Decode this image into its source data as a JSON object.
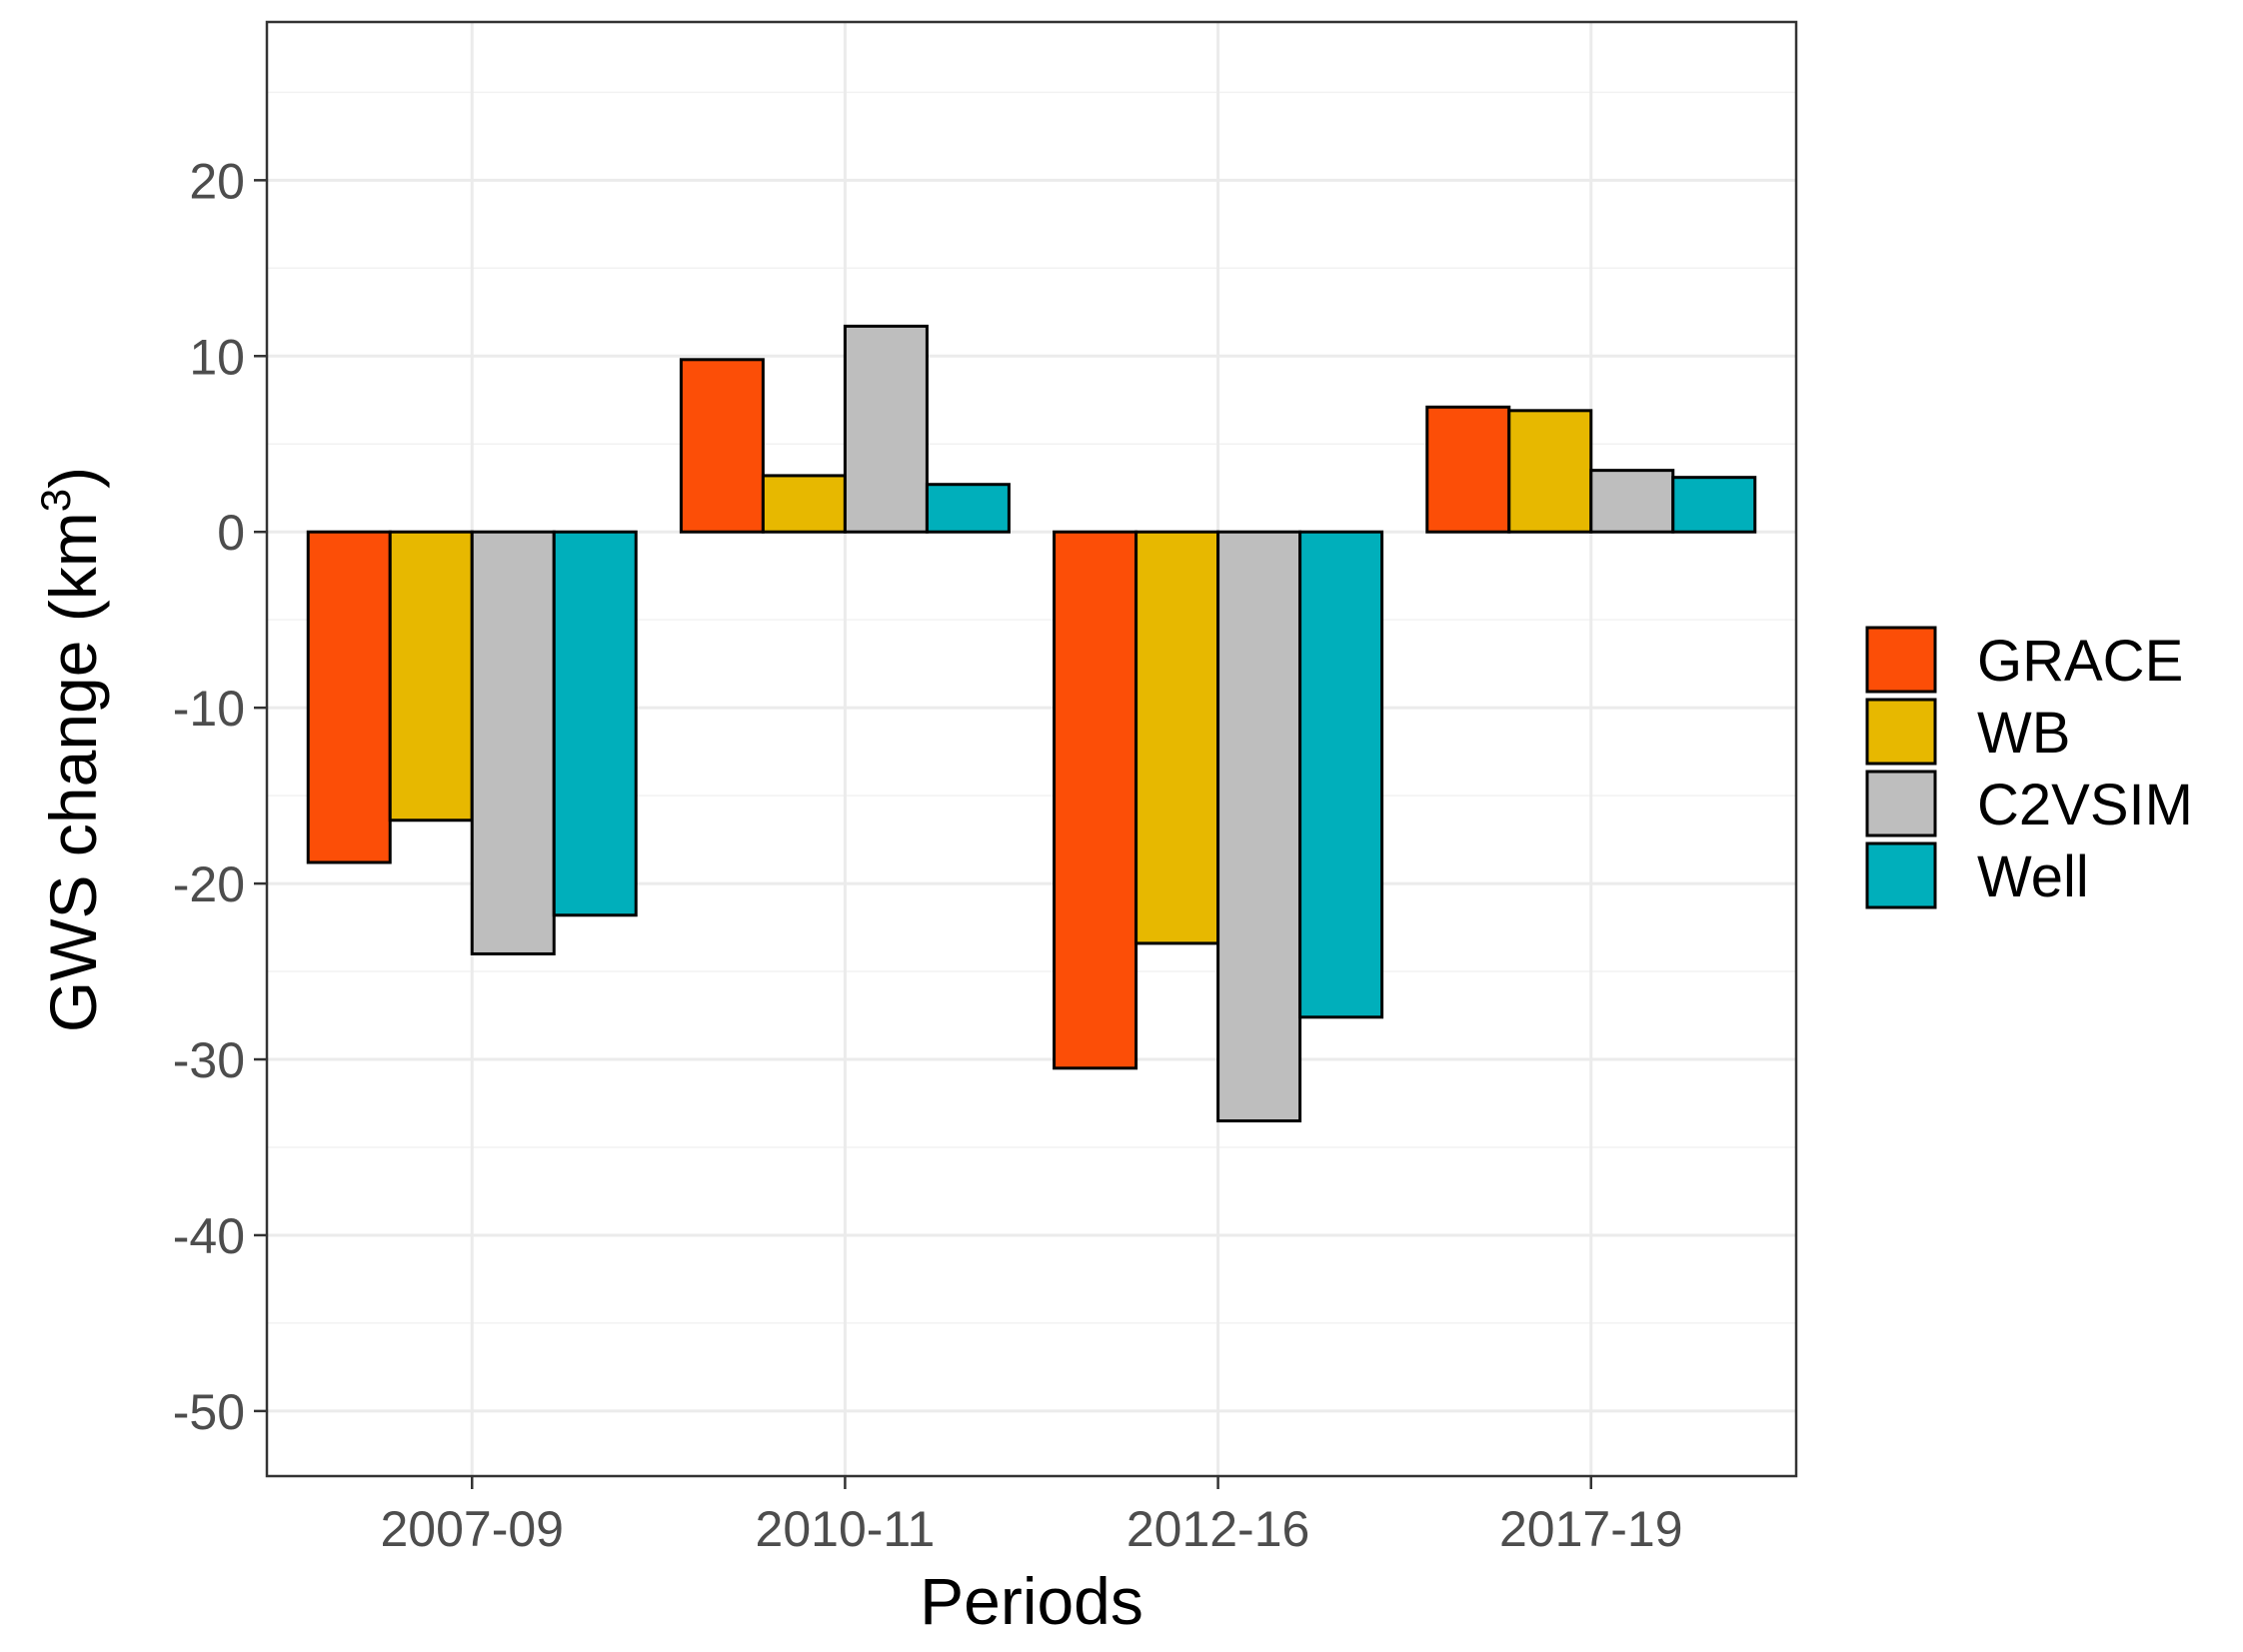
{
  "chart_data": {
    "type": "bar",
    "title": "",
    "xlabel": "Periods",
    "ylabel": "GWS change (km",
    "ylabel_superscript": "3",
    "ylabel_close": ")",
    "categories": [
      "2007-09",
      "2010-11",
      "2012-16",
      "2017-19"
    ],
    "series": [
      {
        "name": "GRACE",
        "color": "#FC4E07",
        "values": [
          -18.8,
          9.8,
          -30.5,
          7.1
        ]
      },
      {
        "name": "WB",
        "color": "#E7B800",
        "values": [
          -16.4,
          3.2,
          -23.4,
          6.9
        ]
      },
      {
        "name": "C2VSIM",
        "color": "#BEBEBE",
        "values": [
          -24.0,
          11.7,
          -33.5,
          3.5
        ]
      },
      {
        "name": "Well",
        "color": "#00AFBB",
        "values": [
          -21.8,
          2.7,
          -27.6,
          3.1
        ]
      }
    ],
    "ylim": [
      -53.7,
      29.0
    ],
    "yticks": [
      20,
      10,
      0,
      -10,
      -20,
      -30,
      -40,
      -50
    ],
    "yticks_labels": [
      "20",
      "10",
      "0",
      "-10",
      "-20",
      "-30",
      "-40",
      "-50"
    ],
    "grid": true,
    "legend_position": "right",
    "bar_outline": "#000000"
  }
}
